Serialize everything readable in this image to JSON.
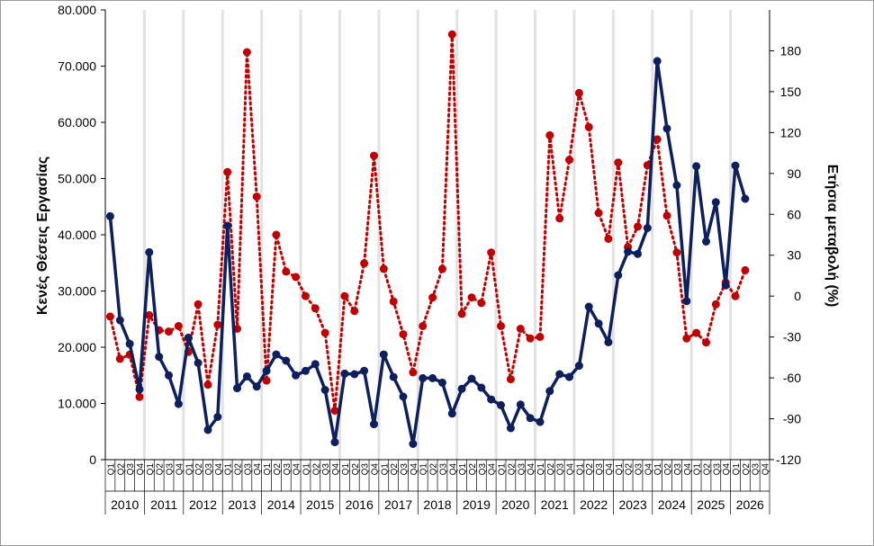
{
  "chart_data": {
    "type": "line",
    "xlabel": "",
    "ylabel": "Κενές Θέσεις Εργασίας",
    "y2label": "Ετήσια μεταβολή (%)",
    "ylim": [
      0,
      80000
    ],
    "y2lim": [
      -120,
      210
    ],
    "yticks": [
      "0",
      "10.000",
      "20.000",
      "30.000",
      "40.000",
      "50.000",
      "60.000",
      "70.000",
      "80.000"
    ],
    "y2ticks": [
      "-120",
      "-90",
      "-60",
      "-30",
      "0",
      "30",
      "60",
      "90",
      "120",
      "150",
      "180"
    ],
    "quarters": [
      "Q1",
      "Q2",
      "Q3",
      "Q4"
    ],
    "years": [
      "2010",
      "2011",
      "2012",
      "2013",
      "2014",
      "2015",
      "2016",
      "2017",
      "2018",
      "2019",
      "2020",
      "2021",
      "2022",
      "2023",
      "2024",
      "2025",
      "2026"
    ],
    "grid": "vertical gridlines at year boundaries",
    "colors": {
      "vacancies": "#0d1f5c",
      "change": "#c00000",
      "grid": "#e2e2e2"
    },
    "series": [
      {
        "axis": "left",
        "style": "solid-line-markers",
        "values": [
          43300,
          24800,
          20600,
          12500,
          36900,
          18300,
          15000,
          9900,
          21700,
          17200,
          5300,
          7600,
          41600,
          12700,
          14800,
          13000,
          15800,
          18700,
          17600,
          15000,
          15800,
          17000,
          12400,
          3100,
          15300,
          15200,
          15800,
          6300,
          18700,
          14700,
          11200,
          2800,
          14500,
          14500,
          13700,
          8200,
          12600,
          14400,
          12800,
          10700,
          9700,
          5600,
          9800,
          7400,
          6700,
          12200,
          15200,
          14700,
          16700,
          27200,
          24200,
          20900,
          32800,
          37000,
          36600,
          41200,
          70900,
          58900,
          48800,
          28200,
          52200,
          38800,
          45800,
          31000,
          52300,
          46400
        ]
      },
      {
        "axis": "right",
        "style": "dotted-line-markers",
        "values": [
          -15,
          -46,
          -43,
          -74,
          -14,
          -25,
          -26,
          -22,
          -41,
          -6,
          -65,
          -21,
          91,
          -24,
          179,
          73,
          -62,
          45,
          18,
          14,
          0,
          -9,
          -27,
          -84,
          0,
          -11,
          24,
          103,
          20,
          -4,
          -28,
          -56,
          -22,
          -1,
          20,
          192,
          -13,
          -1,
          -5,
          32,
          -22,
          -61,
          -24,
          -31,
          -30,
          118,
          57,
          100,
          149,
          124,
          61,
          42,
          98,
          36,
          51,
          96,
          115,
          59,
          32,
          -31,
          -27,
          -34,
          -6,
          10,
          0,
          19
        ]
      }
    ]
  }
}
